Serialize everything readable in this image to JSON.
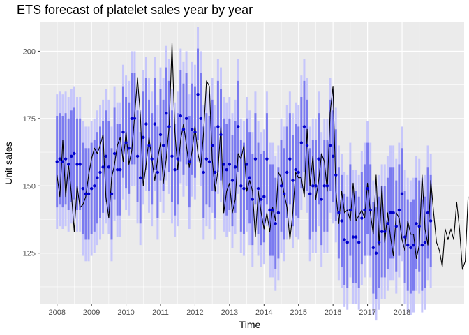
{
  "chart_data": {
    "type": "line",
    "title": "ETS forecast of platelet sales year by year",
    "xlabel": "Time",
    "ylabel": "Unit sales",
    "xlim": [
      2007.5,
      2019.8
    ],
    "ylim": [
      106,
      211
    ],
    "x_ticks": [
      2008,
      2009,
      2010,
      2011,
      2012,
      2013,
      2014,
      2015,
      2016,
      2017,
      2018
    ],
    "y_ticks": [
      125,
      150,
      175,
      200
    ],
    "grid": true,
    "colors": {
      "panel": "#ebebeb",
      "grid": "#ffffff",
      "actual_line": "#000000",
      "forecast_point": "#0000cc",
      "interval_80": "#7b7bf0",
      "interval_95": "#c6c6fb"
    },
    "series": [
      {
        "name": "",
        "kind": "actual-line",
        "start": 2008.0,
        "step": 0.08333,
        "values": [
          154,
          146,
          167,
          146,
          158,
          147,
          133,
          150,
          142,
          143,
          146,
          154,
          160,
          164,
          162,
          165,
          169,
          146,
          138,
          153,
          158,
          165,
          168,
          159,
          170,
          158,
          163,
          176,
          190,
          176,
          150,
          158,
          168,
          160,
          152,
          160,
          166,
          151,
          160,
          172,
          203,
          170,
          156,
          167,
          173,
          165,
          157,
          163,
          172,
          162,
          157,
          170,
          189,
          187,
          160,
          148,
          156,
          172,
          140,
          148,
          151,
          140,
          145,
          162,
          160,
          165,
          148,
          152,
          148,
          131,
          148,
          140,
          134,
          140,
          133,
          142,
          137,
          155,
          153,
          147,
          142,
          130,
          140,
          155,
          153,
          153,
          146,
          171,
          150,
          161,
          145,
          152,
          162,
          159,
          148,
          177,
          187,
          148,
          136,
          148,
          140,
          141,
          137,
          151,
          137,
          139,
          141,
          138,
          151,
          140,
          132,
          154,
          128,
          150,
          129,
          140,
          131,
          124,
          140,
          138,
          130,
          126,
          137,
          132,
          132,
          123,
          128,
          154,
          134,
          128,
          152,
          140,
          129,
          126,
          120,
          134,
          130,
          134,
          130,
          144,
          134,
          119,
          122,
          146
        ]
      },
      {
        "name": "",
        "kind": "forecast-points",
        "start": 2008.0,
        "step": 0.08333,
        "values": [
          159,
          160,
          159,
          160,
          158,
          161,
          162,
          158,
          158,
          149,
          147,
          147,
          149,
          150,
          153,
          155,
          157,
          161,
          157,
          147,
          162,
          156,
          156,
          170,
          166,
          164,
          175,
          175,
          161,
          153,
          168,
          173,
          165,
          160,
          173,
          155,
          169,
          165,
          177,
          172,
          161,
          156,
          160,
          176,
          171,
          175,
          159,
          171,
          170,
          184,
          175,
          155,
          160,
          159,
          165,
          155,
          172,
          169,
          158,
          156,
          158,
          152,
          157,
          172,
          150,
          149,
          158,
          153,
          145,
          160,
          149,
          145,
          146,
          160,
          141,
          141,
          136,
          140,
          150,
          147,
          155,
          160,
          152,
          156,
          155,
          166,
          172,
          165,
          147,
          150,
          150,
          160,
          145,
          150,
          150,
          165,
          161,
          154,
          140,
          137,
          130,
          129,
          141,
          131,
          131,
          129,
          138,
          141,
          149,
          141,
          127,
          125,
          129,
          133,
          133,
          136,
          140,
          140,
          135,
          141,
          147,
          131,
          128,
          127,
          128,
          136,
          135,
          128,
          129,
          140,
          137
        ]
      }
    ]
  }
}
